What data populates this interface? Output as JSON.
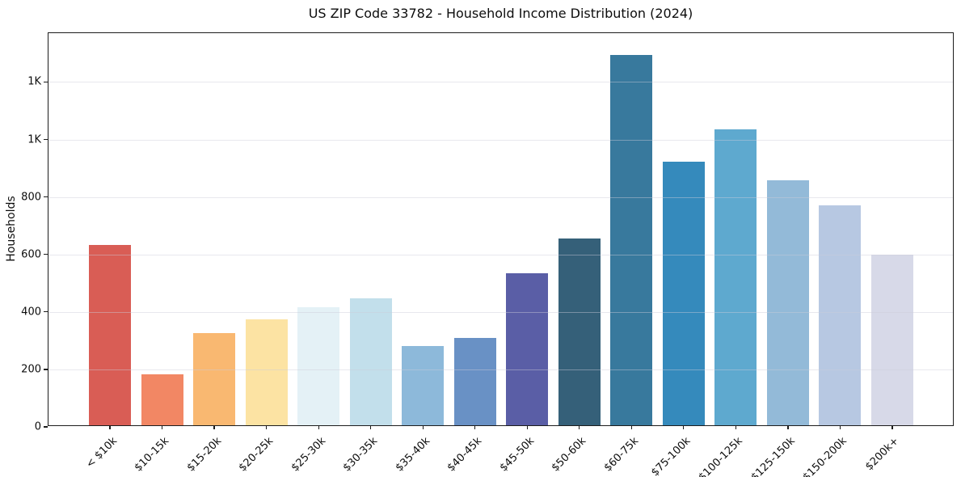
{
  "figure": {
    "title": "US ZIP Code 33782 - Household Income Distribution (2024)"
  },
  "chart_data": {
    "type": "bar",
    "title": "US ZIP Code 33782 - Household Income Distribution (2024)",
    "xlabel": "",
    "ylabel": "Households",
    "ylim": [
      0,
      1370
    ],
    "grid": "horizontal",
    "legend": "none",
    "categories": [
      "< $10k",
      "$10-15k",
      "$15-20k",
      "$20-25k",
      "$25-30k",
      "$30-35k",
      "$35-40k",
      "$40-45k",
      "$45-50k",
      "$50-60k",
      "$60-75k",
      "$75-100k",
      "$100-125k",
      "$125-150k",
      "$150-200k",
      "$200k+"
    ],
    "values": [
      627,
      178,
      321,
      368,
      412,
      442,
      275,
      303,
      529,
      651,
      1289,
      916,
      1031,
      852,
      766,
      593
    ],
    "bar_colors": [
      "#d95d55",
      "#f28764",
      "#f9b871",
      "#fce3a3",
      "#e4f1f6",
      "#c2dfeb",
      "#8db9da",
      "#6991c5",
      "#5a5ea6",
      "#356079",
      "#38799d",
      "#358abc",
      "#5ea9cf",
      "#93bad8",
      "#b7c8e2",
      "#d7d9e8"
    ],
    "yticks": {
      "values": [
        0,
        200,
        400,
        600,
        800,
        1000,
        1200
      ],
      "labels": [
        "0",
        "200",
        "400",
        "600",
        "800",
        "1K",
        "1K"
      ]
    },
    "colors": {
      "spine": "#1c1c1c",
      "gridline": "#e7e7ed",
      "background": "#ffffff"
    }
  }
}
